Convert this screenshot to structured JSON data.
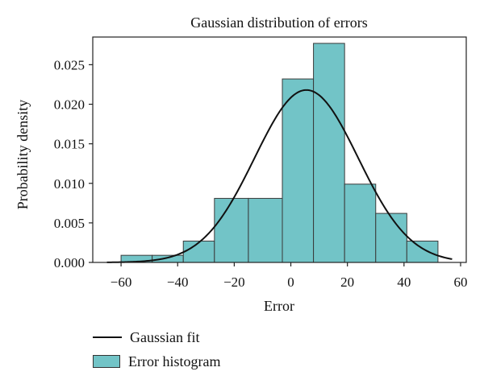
{
  "chart_data": {
    "type": "bar",
    "title": "Gaussian distribution of errors",
    "xlabel": "Error",
    "ylabel": "Probability density",
    "xlim": [
      -70,
      62
    ],
    "ylim": [
      0,
      0.0285
    ],
    "xticks": [
      -60,
      -40,
      -20,
      0,
      20,
      40,
      60
    ],
    "xtick_labels": [
      "−60",
      "−40",
      "−20",
      "0",
      "20",
      "40",
      "60"
    ],
    "yticks": [
      0,
      0.005,
      0.01,
      0.015,
      0.02,
      0.025
    ],
    "ytick_labels": [
      "0.000",
      "0.005",
      "0.010",
      "0.015",
      "0.020",
      "0.025"
    ],
    "grid": false,
    "legend_position": "below",
    "bin_edges": [
      -60,
      -49,
      -38,
      -27,
      -15,
      -3,
      8,
      19,
      30,
      41,
      52
    ],
    "values": [
      0.0009,
      0.0009,
      0.0027,
      0.0081,
      0.0081,
      0.0232,
      0.0277,
      0.0099,
      0.0062,
      0.0027
    ],
    "gaussian_fit": {
      "mean": 5.5,
      "std": 18.3,
      "x_range": [
        -65,
        57
      ]
    },
    "series": [
      {
        "name": "Gaussian fit",
        "kind": "line",
        "color": "#111111"
      },
      {
        "name": "Error histogram",
        "kind": "bar",
        "color": "#72c4c7",
        "edge_color": "#3a3a3a"
      }
    ]
  }
}
